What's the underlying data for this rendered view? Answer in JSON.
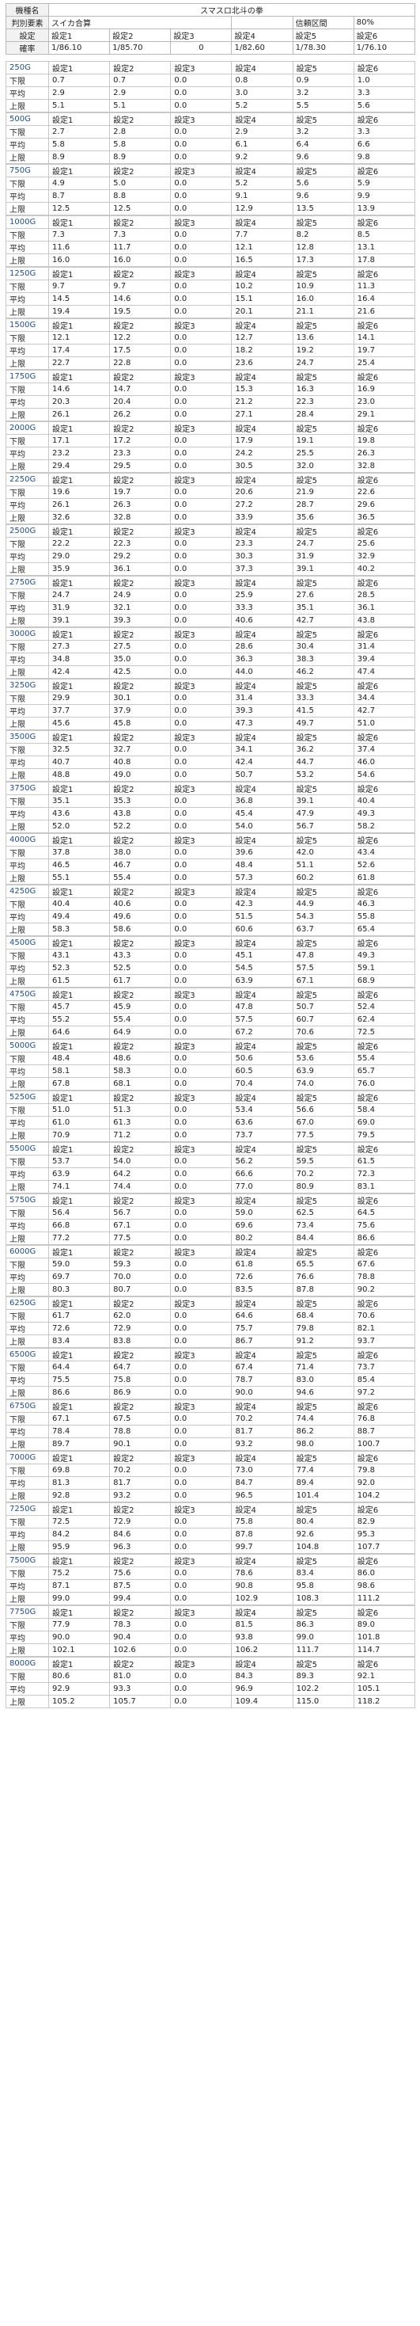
{
  "header": {
    "r1": {
      "label": "機種名",
      "value": "スマスロ北斗の拳"
    },
    "r2": {
      "label": "判別要素",
      "value": "スイカ合算",
      "conf_label": "信頼区間",
      "conf_value": "80%"
    },
    "r3": {
      "label": "設定",
      "cols": [
        "設定1",
        "設定2",
        "設定3",
        "設定4",
        "設定5",
        "設定6"
      ]
    },
    "r4": {
      "label": "確率",
      "cols": [
        "1/86.10",
        "1/85.70",
        "0",
        "1/82.60",
        "1/78.30",
        "1/76.10"
      ]
    }
  },
  "settings": [
    "設定1",
    "設定2",
    "設定3",
    "設定4",
    "設定5",
    "設定6"
  ],
  "row_labels": [
    "下限",
    "平均",
    "上限"
  ],
  "blocks": [
    {
      "g": "250G",
      "low": [
        "0.7",
        "0.7",
        "0.0",
        "0.8",
        "0.9",
        "1.0"
      ],
      "avg": [
        "2.9",
        "2.9",
        "0.0",
        "3.0",
        "3.2",
        "3.3"
      ],
      "high": [
        "5.1",
        "5.1",
        "0.0",
        "5.2",
        "5.5",
        "5.6"
      ]
    },
    {
      "g": "500G",
      "low": [
        "2.7",
        "2.8",
        "0.0",
        "2.9",
        "3.2",
        "3.3"
      ],
      "avg": [
        "5.8",
        "5.8",
        "0.0",
        "6.1",
        "6.4",
        "6.6"
      ],
      "high": [
        "8.9",
        "8.9",
        "0.0",
        "9.2",
        "9.6",
        "9.8"
      ]
    },
    {
      "g": "750G",
      "low": [
        "4.9",
        "5.0",
        "0.0",
        "5.2",
        "5.6",
        "5.9"
      ],
      "avg": [
        "8.7",
        "8.8",
        "0.0",
        "9.1",
        "9.6",
        "9.9"
      ],
      "high": [
        "12.5",
        "12.5",
        "0.0",
        "12.9",
        "13.5",
        "13.9"
      ]
    },
    {
      "g": "1000G",
      "low": [
        "7.3",
        "7.3",
        "0.0",
        "7.7",
        "8.2",
        "8.5"
      ],
      "avg": [
        "11.6",
        "11.7",
        "0.0",
        "12.1",
        "12.8",
        "13.1"
      ],
      "high": [
        "16.0",
        "16.0",
        "0.0",
        "16.5",
        "17.3",
        "17.8"
      ]
    },
    {
      "g": "1250G",
      "low": [
        "9.7",
        "9.7",
        "0.0",
        "10.2",
        "10.9",
        "11.3"
      ],
      "avg": [
        "14.5",
        "14.6",
        "0.0",
        "15.1",
        "16.0",
        "16.4"
      ],
      "high": [
        "19.4",
        "19.5",
        "0.0",
        "20.1",
        "21.1",
        "21.6"
      ]
    },
    {
      "g": "1500G",
      "low": [
        "12.1",
        "12.2",
        "0.0",
        "12.7",
        "13.6",
        "14.1"
      ],
      "avg": [
        "17.4",
        "17.5",
        "0.0",
        "18.2",
        "19.2",
        "19.7"
      ],
      "high": [
        "22.7",
        "22.8",
        "0.0",
        "23.6",
        "24.7",
        "25.4"
      ]
    },
    {
      "g": "1750G",
      "low": [
        "14.6",
        "14.7",
        "0.0",
        "15.3",
        "16.3",
        "16.9"
      ],
      "avg": [
        "20.3",
        "20.4",
        "0.0",
        "21.2",
        "22.3",
        "23.0"
      ],
      "high": [
        "26.1",
        "26.2",
        "0.0",
        "27.1",
        "28.4",
        "29.1"
      ]
    },
    {
      "g": "2000G",
      "low": [
        "17.1",
        "17.2",
        "0.0",
        "17.9",
        "19.1",
        "19.8"
      ],
      "avg": [
        "23.2",
        "23.3",
        "0.0",
        "24.2",
        "25.5",
        "26.3"
      ],
      "high": [
        "29.4",
        "29.5",
        "0.0",
        "30.5",
        "32.0",
        "32.8"
      ]
    },
    {
      "g": "2250G",
      "low": [
        "19.6",
        "19.7",
        "0.0",
        "20.6",
        "21.9",
        "22.6"
      ],
      "avg": [
        "26.1",
        "26.3",
        "0.0",
        "27.2",
        "28.7",
        "29.6"
      ],
      "high": [
        "32.6",
        "32.8",
        "0.0",
        "33.9",
        "35.6",
        "36.5"
      ]
    },
    {
      "g": "2500G",
      "low": [
        "22.2",
        "22.3",
        "0.0",
        "23.3",
        "24.7",
        "25.6"
      ],
      "avg": [
        "29.0",
        "29.2",
        "0.0",
        "30.3",
        "31.9",
        "32.9"
      ],
      "high": [
        "35.9",
        "36.1",
        "0.0",
        "37.3",
        "39.1",
        "40.2"
      ]
    },
    {
      "g": "2750G",
      "low": [
        "24.7",
        "24.9",
        "0.0",
        "25.9",
        "27.6",
        "28.5"
      ],
      "avg": [
        "31.9",
        "32.1",
        "0.0",
        "33.3",
        "35.1",
        "36.1"
      ],
      "high": [
        "39.1",
        "39.3",
        "0.0",
        "40.6",
        "42.7",
        "43.8"
      ]
    },
    {
      "g": "3000G",
      "low": [
        "27.3",
        "27.5",
        "0.0",
        "28.6",
        "30.4",
        "31.4"
      ],
      "avg": [
        "34.8",
        "35.0",
        "0.0",
        "36.3",
        "38.3",
        "39.4"
      ],
      "high": [
        "42.4",
        "42.5",
        "0.0",
        "44.0",
        "46.2",
        "47.4"
      ]
    },
    {
      "g": "3250G",
      "low": [
        "29.9",
        "30.1",
        "0.0",
        "31.4",
        "33.3",
        "34.4"
      ],
      "avg": [
        "37.7",
        "37.9",
        "0.0",
        "39.3",
        "41.5",
        "42.7"
      ],
      "high": [
        "45.6",
        "45.8",
        "0.0",
        "47.3",
        "49.7",
        "51.0"
      ]
    },
    {
      "g": "3500G",
      "low": [
        "32.5",
        "32.7",
        "0.0",
        "34.1",
        "36.2",
        "37.4"
      ],
      "avg": [
        "40.7",
        "40.8",
        "0.0",
        "42.4",
        "44.7",
        "46.0"
      ],
      "high": [
        "48.8",
        "49.0",
        "0.0",
        "50.7",
        "53.2",
        "54.6"
      ]
    },
    {
      "g": "3750G",
      "low": [
        "35.1",
        "35.3",
        "0.0",
        "36.8",
        "39.1",
        "40.4"
      ],
      "avg": [
        "43.6",
        "43.8",
        "0.0",
        "45.4",
        "47.9",
        "49.3"
      ],
      "high": [
        "52.0",
        "52.2",
        "0.0",
        "54.0",
        "56.7",
        "58.2"
      ]
    },
    {
      "g": "4000G",
      "low": [
        "37.8",
        "38.0",
        "0.0",
        "39.6",
        "42.0",
        "43.4"
      ],
      "avg": [
        "46.5",
        "46.7",
        "0.0",
        "48.4",
        "51.1",
        "52.6"
      ],
      "high": [
        "55.1",
        "55.4",
        "0.0",
        "57.3",
        "60.2",
        "61.8"
      ]
    },
    {
      "g": "4250G",
      "low": [
        "40.4",
        "40.6",
        "0.0",
        "42.3",
        "44.9",
        "46.3"
      ],
      "avg": [
        "49.4",
        "49.6",
        "0.0",
        "51.5",
        "54.3",
        "55.8"
      ],
      "high": [
        "58.3",
        "58.6",
        "0.0",
        "60.6",
        "63.7",
        "65.4"
      ]
    },
    {
      "g": "4500G",
      "low": [
        "43.1",
        "43.3",
        "0.0",
        "45.1",
        "47.8",
        "49.3"
      ],
      "avg": [
        "52.3",
        "52.5",
        "0.0",
        "54.5",
        "57.5",
        "59.1"
      ],
      "high": [
        "61.5",
        "61.7",
        "0.0",
        "63.9",
        "67.1",
        "68.9"
      ]
    },
    {
      "g": "4750G",
      "low": [
        "45.7",
        "45.9",
        "0.0",
        "47.8",
        "50.7",
        "52.4"
      ],
      "avg": [
        "55.2",
        "55.4",
        "0.0",
        "57.5",
        "60.7",
        "62.4"
      ],
      "high": [
        "64.6",
        "64.9",
        "0.0",
        "67.2",
        "70.6",
        "72.5"
      ]
    },
    {
      "g": "5000G",
      "low": [
        "48.4",
        "48.6",
        "0.0",
        "50.6",
        "53.6",
        "55.4"
      ],
      "avg": [
        "58.1",
        "58.3",
        "0.0",
        "60.5",
        "63.9",
        "65.7"
      ],
      "high": [
        "67.8",
        "68.1",
        "0.0",
        "70.4",
        "74.0",
        "76.0"
      ]
    },
    {
      "g": "5250G",
      "low": [
        "51.0",
        "51.3",
        "0.0",
        "53.4",
        "56.6",
        "58.4"
      ],
      "avg": [
        "61.0",
        "61.3",
        "0.0",
        "63.6",
        "67.0",
        "69.0"
      ],
      "high": [
        "70.9",
        "71.2",
        "0.0",
        "73.7",
        "77.5",
        "79.5"
      ]
    },
    {
      "g": "5500G",
      "low": [
        "53.7",
        "54.0",
        "0.0",
        "56.2",
        "59.5",
        "61.5"
      ],
      "avg": [
        "63.9",
        "64.2",
        "0.0",
        "66.6",
        "70.2",
        "72.3"
      ],
      "high": [
        "74.1",
        "74.4",
        "0.0",
        "77.0",
        "80.9",
        "83.1"
      ]
    },
    {
      "g": "5750G",
      "low": [
        "56.4",
        "56.7",
        "0.0",
        "59.0",
        "62.5",
        "64.5"
      ],
      "avg": [
        "66.8",
        "67.1",
        "0.0",
        "69.6",
        "73.4",
        "75.6"
      ],
      "high": [
        "77.2",
        "77.5",
        "0.0",
        "80.2",
        "84.4",
        "86.6"
      ]
    },
    {
      "g": "6000G",
      "low": [
        "59.0",
        "59.3",
        "0.0",
        "61.8",
        "65.5",
        "67.6"
      ],
      "avg": [
        "69.7",
        "70.0",
        "0.0",
        "72.6",
        "76.6",
        "78.8"
      ],
      "high": [
        "80.3",
        "80.7",
        "0.0",
        "83.5",
        "87.8",
        "90.2"
      ]
    },
    {
      "g": "6250G",
      "low": [
        "61.7",
        "62.0",
        "0.0",
        "64.6",
        "68.4",
        "70.6"
      ],
      "avg": [
        "72.6",
        "72.9",
        "0.0",
        "75.7",
        "79.8",
        "82.1"
      ],
      "high": [
        "83.4",
        "83.8",
        "0.0",
        "86.7",
        "91.2",
        "93.7"
      ]
    },
    {
      "g": "6500G",
      "low": [
        "64.4",
        "64.7",
        "0.0",
        "67.4",
        "71.4",
        "73.7"
      ],
      "avg": [
        "75.5",
        "75.8",
        "0.0",
        "78.7",
        "83.0",
        "85.4"
      ],
      "high": [
        "86.6",
        "86.9",
        "0.0",
        "90.0",
        "94.6",
        "97.2"
      ]
    },
    {
      "g": "6750G",
      "low": [
        "67.1",
        "67.5",
        "0.0",
        "70.2",
        "74.4",
        "76.8"
      ],
      "avg": [
        "78.4",
        "78.8",
        "0.0",
        "81.7",
        "86.2",
        "88.7"
      ],
      "high": [
        "89.7",
        "90.1",
        "0.0",
        "93.2",
        "98.0",
        "100.7"
      ]
    },
    {
      "g": "7000G",
      "low": [
        "69.8",
        "70.2",
        "0.0",
        "73.0",
        "77.4",
        "79.8"
      ],
      "avg": [
        "81.3",
        "81.7",
        "0.0",
        "84.7",
        "89.4",
        "92.0"
      ],
      "high": [
        "92.8",
        "93.2",
        "0.0",
        "96.5",
        "101.4",
        "104.2"
      ]
    },
    {
      "g": "7250G",
      "low": [
        "72.5",
        "72.9",
        "0.0",
        "75.8",
        "80.4",
        "82.9"
      ],
      "avg": [
        "84.2",
        "84.6",
        "0.0",
        "87.8",
        "92.6",
        "95.3"
      ],
      "high": [
        "95.9",
        "96.3",
        "0.0",
        "99.7",
        "104.8",
        "107.7"
      ]
    },
    {
      "g": "7500G",
      "low": [
        "75.2",
        "75.6",
        "0.0",
        "78.6",
        "83.4",
        "86.0"
      ],
      "avg": [
        "87.1",
        "87.5",
        "0.0",
        "90.8",
        "95.8",
        "98.6"
      ],
      "high": [
        "99.0",
        "99.4",
        "0.0",
        "102.9",
        "108.3",
        "111.2"
      ]
    },
    {
      "g": "7750G",
      "low": [
        "77.9",
        "78.3",
        "0.0",
        "81.5",
        "86.3",
        "89.0"
      ],
      "avg": [
        "90.0",
        "90.4",
        "0.0",
        "93.8",
        "99.0",
        "101.8"
      ],
      "high": [
        "102.1",
        "102.6",
        "0.0",
        "106.2",
        "111.7",
        "114.7"
      ]
    },
    {
      "g": "8000G",
      "low": [
        "80.6",
        "81.0",
        "0.0",
        "84.3",
        "89.3",
        "92.1"
      ],
      "avg": [
        "92.9",
        "93.3",
        "0.0",
        "96.9",
        "102.2",
        "105.1"
      ],
      "high": [
        "105.2",
        "105.7",
        "0.0",
        "109.4",
        "115.0",
        "118.2"
      ]
    }
  ]
}
